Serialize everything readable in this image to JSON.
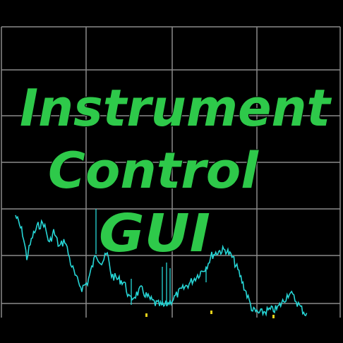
{
  "logo": {
    "lines": [
      "Instrument",
      "Control",
      "GUI"
    ],
    "color": "#2ec94a",
    "outline_color": "#000000"
  },
  "scope": {
    "background": "#000000",
    "grid_color": "#8a8a8a",
    "trace_color": "#27d6d6",
    "marker_color": "#e6d21a"
  }
}
